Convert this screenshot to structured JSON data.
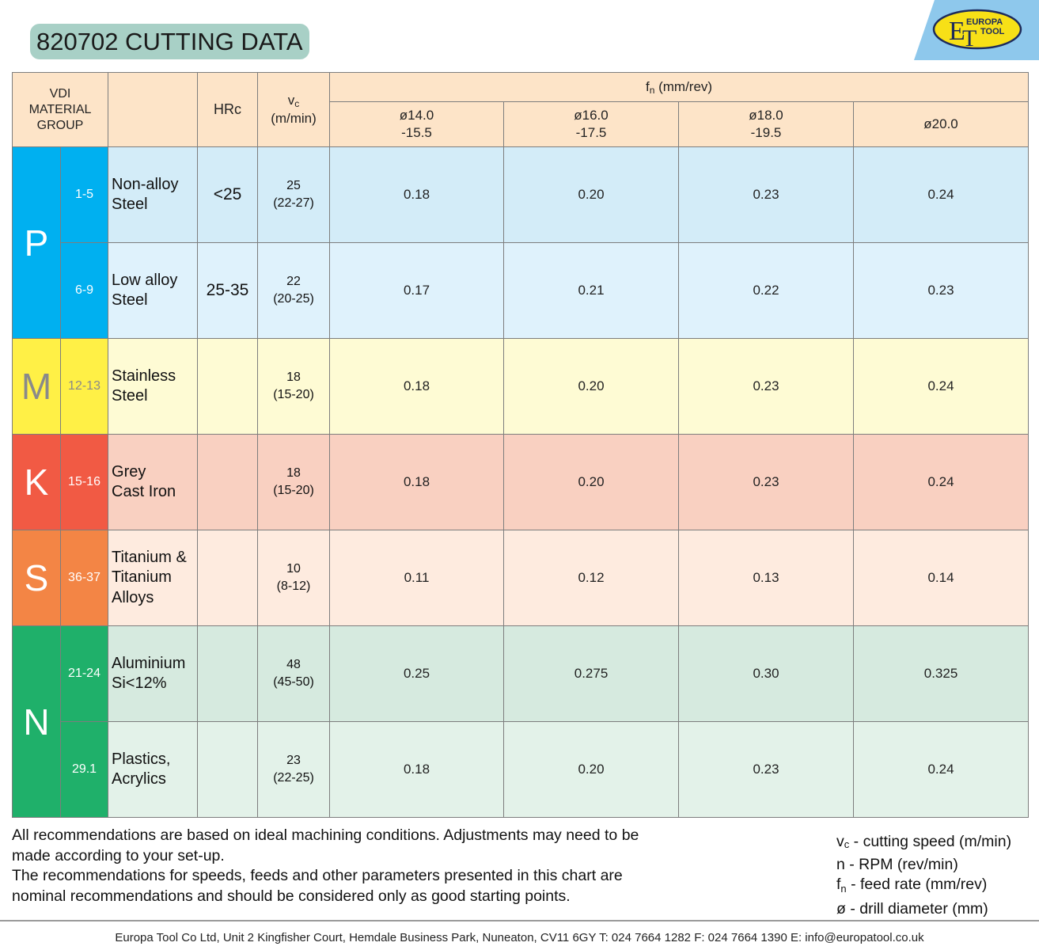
{
  "title": "820702 CUTTING DATA",
  "logo": {
    "line1": "EUROPA",
    "line2": "TOOL",
    "monogram_e": "E",
    "monogram_t": "T"
  },
  "header": {
    "vdi": [
      "VDI",
      "MATERIAL",
      "GROUP"
    ],
    "hrc": "HRc",
    "vc_symbol": "v",
    "vc_sub": "c",
    "vc_unit": "(m/min)",
    "fn_symbol": "f",
    "fn_sub": "n",
    "fn_unit": " (mm/rev)",
    "diameters": [
      {
        "l1": "ø14.0",
        "l2": "-15.5"
      },
      {
        "l1": "ø16.0",
        "l2": "-17.5"
      },
      {
        "l1": "ø18.0",
        "l2": "-19.5"
      },
      {
        "l1": "ø20.0",
        "l2": ""
      }
    ]
  },
  "colors": {
    "P": {
      "main": "#00b0f0",
      "light_a": "#d3ecf8",
      "light_b": "#dff2fc"
    },
    "M": {
      "main": "#fff046",
      "light_a": "#fefbd4",
      "light_b": "#fefbd4"
    },
    "K": {
      "main": "#f15a44",
      "light_a": "#f9d0c1",
      "light_b": "#f9d0c1"
    },
    "S": {
      "main": "#f38545",
      "light_a": "#feebdf",
      "light_b": "#feebdf"
    },
    "N": {
      "main": "#1fb06a",
      "light_a": "#d6eadf",
      "light_b": "#e3f2e9"
    }
  },
  "groups": {
    "P": {
      "letter": "P",
      "letter_color": "#ffffff"
    },
    "M": {
      "letter": "M",
      "letter_color": "#8a8a8a"
    },
    "K": {
      "letter": "K",
      "letter_color": "#ffffff"
    },
    "S": {
      "letter": "S",
      "letter_color": "#ffffff"
    },
    "N": {
      "letter": "N",
      "letter_color": "#ffffff"
    }
  },
  "rows": [
    {
      "vdi": "1-5",
      "material": [
        "Non-alloy",
        "Steel"
      ],
      "hrc": "<25",
      "vc": "25",
      "vc_range": "(22-27)",
      "fn": [
        "0.18",
        "0.20",
        "0.23",
        "0.24"
      ]
    },
    {
      "vdi": "6-9",
      "material": [
        "Low alloy",
        "Steel"
      ],
      "hrc": "25-35",
      "vc": "22",
      "vc_range": "(20-25)",
      "fn": [
        "0.17",
        "0.21",
        "0.22",
        "0.23"
      ]
    },
    {
      "vdi": "12-13",
      "material": [
        "Stainless",
        "Steel"
      ],
      "hrc": "",
      "vc": "18",
      "vc_range": "(15-20)",
      "fn": [
        "0.18",
        "0.20",
        "0.23",
        "0.24"
      ]
    },
    {
      "vdi": "15-16",
      "material": [
        "Grey",
        "Cast Iron"
      ],
      "hrc": "",
      "vc": "18",
      "vc_range": "(15-20)",
      "fn": [
        "0.18",
        "0.20",
        "0.23",
        "0.24"
      ]
    },
    {
      "vdi": "36-37",
      "material": [
        "Titanium &",
        "Titanium",
        "Alloys"
      ],
      "hrc": "",
      "vc": "10",
      "vc_range": "(8-12)",
      "fn": [
        "0.11",
        "0.12",
        "0.13",
        "0.14"
      ]
    },
    {
      "vdi": "21-24",
      "material": [
        "Aluminium",
        "Si<12%"
      ],
      "hrc": "",
      "vc": "48",
      "vc_range": "(45-50)",
      "fn": [
        "0.25",
        "0.275",
        "0.30",
        "0.325"
      ]
    },
    {
      "vdi": "29.1",
      "material": [
        "Plastics,",
        "Acrylics"
      ],
      "hrc": "",
      "vc": "23",
      "vc_range": "(22-25)",
      "fn": [
        "0.18",
        "0.20",
        "0.23",
        "0.24"
      ]
    }
  ],
  "notes": [
    "All recommendations are based on ideal machining conditions. Adjustments may need to be",
    "made according to your set-up.",
    "The recommendations for speeds, feeds and other parameters presented in this chart are",
    "nominal recommendations and should be considered only as good starting points."
  ],
  "legend": {
    "vc_sym": "v",
    "vc_sub": "c",
    "vc_text": " - cutting speed (m/min)",
    "n_text": "n - RPM (rev/min)",
    "fn_sym": "f",
    "fn_sub": "n",
    "fn_text": " - feed rate (mm/rev)",
    "d_text": "ø - drill diameter (mm)"
  },
  "footer": "Europa Tool Co Ltd, Unit 2 Kingfisher Court, Hemdale Business Park, Nuneaton, CV11 6GY  T: 024 7664 1282  F: 024 7664 1390  E: info@europatool.co.uk"
}
